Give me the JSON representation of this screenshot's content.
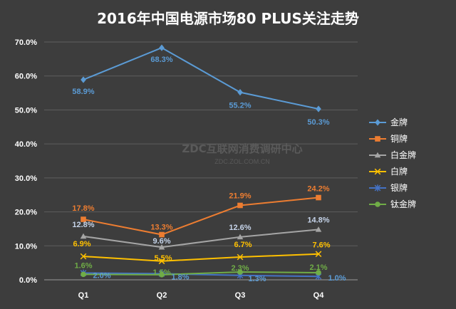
{
  "chart_data": {
    "type": "line",
    "title": "2016年中国电源市场80 PLUS关注走势",
    "categories": [
      "Q1",
      "Q2",
      "Q3",
      "Q4"
    ],
    "ylim": [
      0,
      70
    ],
    "yticks": [
      "0.0%",
      "10.0%",
      "20.0%",
      "30.0%",
      "40.0%",
      "50.0%",
      "60.0%",
      "70.0%"
    ],
    "grid": true,
    "legend": "right",
    "series": [
      {
        "name": "金牌",
        "values": [
          58.9,
          68.3,
          55.2,
          50.3
        ],
        "labels": [
          "58.9%",
          "68.3%",
          "55.2%",
          "50.3%"
        ],
        "color": "#5b9bd5",
        "label_color": "#5b9bd5",
        "marker": "diamond"
      },
      {
        "name": "铜牌",
        "values": [
          17.8,
          13.3,
          21.9,
          24.2
        ],
        "labels": [
          "17.8%",
          "13.3%",
          "21.9%",
          "24.2%"
        ],
        "color": "#ed7d31",
        "label_color": "#ed7d31",
        "marker": "square"
      },
      {
        "name": "白金牌",
        "values": [
          12.8,
          9.6,
          12.6,
          14.8
        ],
        "labels": [
          "12.8%",
          "9.6%",
          "12.6%",
          "14.8%"
        ],
        "color": "#a5a5a5",
        "label_color": "#c6d4ea",
        "marker": "triangle"
      },
      {
        "name": "白牌",
        "values": [
          6.9,
          5.5,
          6.7,
          7.6
        ],
        "labels": [
          "6.9%",
          "5.5%",
          "6.7%",
          "7.6%"
        ],
        "color": "#ffc000",
        "label_color": "#ffc000",
        "marker": "x"
      },
      {
        "name": "银牌",
        "values": [
          2.0,
          1.8,
          1.3,
          1.0
        ],
        "labels": [
          "2.0%",
          "1.8%",
          "1.3%",
          "1.0%"
        ],
        "color": "#4472c4",
        "label_color": "#5b9bd5",
        "marker": "star"
      },
      {
        "name": "钛金牌",
        "values": [
          1.6,
          1.5,
          2.3,
          2.1
        ],
        "labels": [
          "1.6%",
          "1.5%",
          "2.3%",
          "2.1%"
        ],
        "color": "#70ad47",
        "label_color": "#70ad47",
        "marker": "circle"
      }
    ]
  },
  "watermark": {
    "line1": "ZDC互联网消费调研中心",
    "line2": "ZDC.ZOL.COM.CN"
  }
}
